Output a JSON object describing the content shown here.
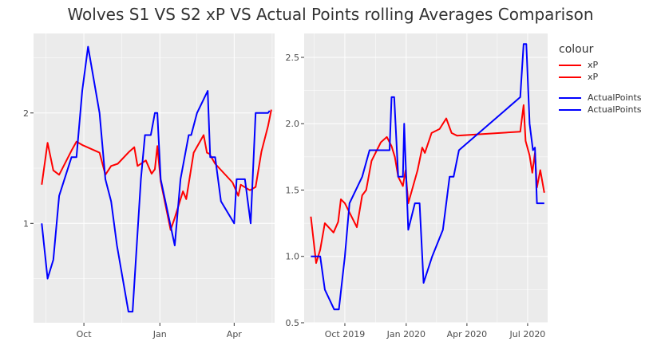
{
  "title": "Wolves S1 VS S2 xP VS Actual Points rolling Averages Comparison",
  "legend": {
    "title": "colour",
    "items": [
      {
        "label": "xP",
        "color": "#ff0000"
      },
      {
        "label": "xP",
        "color": "#ff0000"
      },
      {
        "label": "ActualPoints",
        "color": "#0000ff"
      },
      {
        "label": "ActualPoints",
        "color": "#0000ff"
      }
    ]
  },
  "chart_data": [
    {
      "type": "line",
      "title": "",
      "xlabel": "",
      "ylabel": "",
      "x_unit": "date",
      "xlim": [
        "2018-08-01",
        "2019-05-20"
      ],
      "ylim": [
        0.1,
        2.72
      ],
      "grid": true,
      "x_ticks": [
        {
          "value": "2018-10-01",
          "label": "Oct"
        },
        {
          "value": "2019-01-01",
          "label": "Jan"
        },
        {
          "value": "2019-04-01",
          "label": "Apr"
        }
      ],
      "y_ticks": [
        1,
        2
      ],
      "series": [
        {
          "name": "xP",
          "color": "#ff0000",
          "points": [
            [
              "2018-08-11",
              1.35
            ],
            [
              "2018-08-18",
              1.73
            ],
            [
              "2018-08-25",
              1.48
            ],
            [
              "2018-09-01",
              1.44
            ],
            [
              "2018-09-16",
              1.66
            ],
            [
              "2018-09-22",
              1.74
            ],
            [
              "2018-09-29",
              1.71
            ],
            [
              "2018-10-20",
              1.64
            ],
            [
              "2018-10-27",
              1.44
            ],
            [
              "2018-11-03",
              1.52
            ],
            [
              "2018-11-11",
              1.54
            ],
            [
              "2018-11-25",
              1.65
            ],
            [
              "2018-12-01",
              1.69
            ],
            [
              "2018-12-05",
              1.52
            ],
            [
              "2018-12-15",
              1.57
            ],
            [
              "2018-12-22",
              1.45
            ],
            [
              "2018-12-26",
              1.49
            ],
            [
              "2018-12-29",
              1.7
            ],
            [
              "2019-01-02",
              1.38
            ],
            [
              "2019-01-14",
              0.94
            ],
            [
              "2019-01-19",
              1.05
            ],
            [
              "2019-01-29",
              1.29
            ],
            [
              "2019-02-02",
              1.22
            ],
            [
              "2019-02-11",
              1.64
            ],
            [
              "2019-02-23",
              1.8
            ],
            [
              "2019-02-27",
              1.64
            ],
            [
              "2019-03-02",
              1.63
            ],
            [
              "2019-03-09",
              1.54
            ],
            [
              "2019-03-30",
              1.37
            ],
            [
              "2019-04-06",
              1.25
            ],
            [
              "2019-04-09",
              1.35
            ],
            [
              "2019-04-20",
              1.3
            ],
            [
              "2019-04-27",
              1.33
            ],
            [
              "2019-05-04",
              1.65
            ],
            [
              "2019-05-12",
              1.88
            ],
            [
              "2019-05-16",
              2.03
            ]
          ]
        },
        {
          "name": "ActualPoints",
          "color": "#0000ff",
          "points": [
            [
              "2018-08-11",
              1.0
            ],
            [
              "2018-08-18",
              0.5
            ],
            [
              "2018-08-25",
              0.67
            ],
            [
              "2018-09-01",
              1.25
            ],
            [
              "2018-09-16",
              1.6
            ],
            [
              "2018-09-22",
              1.6
            ],
            [
              "2018-09-29",
              2.2
            ],
            [
              "2018-10-06",
              2.6
            ],
            [
              "2018-10-20",
              2.0
            ],
            [
              "2018-10-27",
              1.4
            ],
            [
              "2018-11-03",
              1.2
            ],
            [
              "2018-11-10",
              0.8
            ],
            [
              "2018-11-24",
              0.2
            ],
            [
              "2018-11-29",
              0.2
            ],
            [
              "2018-12-09",
              1.4
            ],
            [
              "2018-12-14",
              1.8
            ],
            [
              "2018-12-21",
              1.8
            ],
            [
              "2018-12-26",
              2.0
            ],
            [
              "2018-12-29",
              2.0
            ],
            [
              "2019-01-02",
              1.4
            ],
            [
              "2019-01-19",
              0.8
            ],
            [
              "2019-01-26",
              1.4
            ],
            [
              "2019-02-05",
              1.8
            ],
            [
              "2019-02-08",
              1.8
            ],
            [
              "2019-02-15",
              2.0
            ],
            [
              "2019-02-28",
              2.2
            ],
            [
              "2019-03-03",
              1.6
            ],
            [
              "2019-03-09",
              1.6
            ],
            [
              "2019-03-16",
              1.2
            ],
            [
              "2019-04-01",
              1.0
            ],
            [
              "2019-04-04",
              1.4
            ],
            [
              "2019-04-14",
              1.4
            ],
            [
              "2019-04-21",
              1.0
            ],
            [
              "2019-04-27",
              2.0
            ],
            [
              "2019-05-12",
              2.0
            ],
            [
              "2019-05-14",
              2.02
            ]
          ]
        }
      ]
    },
    {
      "type": "line",
      "title": "",
      "xlabel": "",
      "ylabel": "",
      "x_unit": "date",
      "xlim": [
        "2019-08-01",
        "2020-07-31"
      ],
      "ylim": [
        0.5,
        2.68
      ],
      "grid": true,
      "x_ticks": [
        {
          "value": "2019-10-01",
          "label": "Oct 2019"
        },
        {
          "value": "2020-01-01",
          "label": "Jan 2020"
        },
        {
          "value": "2020-04-01",
          "label": "Apr 2020"
        },
        {
          "value": "2020-07-01",
          "label": "Jul 2020"
        }
      ],
      "y_ticks": [
        0.5,
        1.0,
        1.5,
        2.0,
        2.5
      ],
      "series": [
        {
          "name": "xP",
          "color": "#ff0000",
          "points": [
            [
              "2019-08-11",
              1.3
            ],
            [
              "2019-08-19",
              0.95
            ],
            [
              "2019-08-25",
              1.05
            ],
            [
              "2019-09-01",
              1.25
            ],
            [
              "2019-09-14",
              1.18
            ],
            [
              "2019-09-21",
              1.26
            ],
            [
              "2019-09-25",
              1.43
            ],
            [
              "2019-10-01",
              1.4
            ],
            [
              "2019-10-19",
              1.22
            ],
            [
              "2019-10-27",
              1.46
            ],
            [
              "2019-11-02",
              1.5
            ],
            [
              "2019-11-10",
              1.72
            ],
            [
              "2019-11-24",
              1.86
            ],
            [
              "2019-12-03",
              1.9
            ],
            [
              "2019-12-10",
              1.83
            ],
            [
              "2019-12-15",
              1.75
            ],
            [
              "2019-12-20",
              1.6
            ],
            [
              "2019-12-27",
              1.53
            ],
            [
              "2019-12-31",
              1.65
            ],
            [
              "2020-01-04",
              1.4
            ],
            [
              "2020-01-18",
              1.65
            ],
            [
              "2020-01-25",
              1.82
            ],
            [
              "2020-01-29",
              1.78
            ],
            [
              "2020-02-08",
              1.93
            ],
            [
              "2020-02-20",
              1.96
            ],
            [
              "2020-03-01",
              2.04
            ],
            [
              "2020-03-09",
              1.93
            ],
            [
              "2020-03-17",
              1.91
            ],
            [
              "2020-06-20",
              1.94
            ],
            [
              "2020-06-25",
              2.14
            ],
            [
              "2020-06-28",
              1.87
            ],
            [
              "2020-07-04",
              1.76
            ],
            [
              "2020-07-08",
              1.63
            ],
            [
              "2020-07-12",
              1.78
            ],
            [
              "2020-07-15",
              1.52
            ],
            [
              "2020-07-20",
              1.65
            ],
            [
              "2020-07-26",
              1.48
            ]
          ]
        },
        {
          "name": "ActualPoints",
          "color": "#0000ff",
          "points": [
            [
              "2019-08-11",
              1.0
            ],
            [
              "2019-08-25",
              1.0
            ],
            [
              "2019-09-01",
              0.75
            ],
            [
              "2019-09-15",
              0.6
            ],
            [
              "2019-09-22",
              0.6
            ],
            [
              "2019-10-01",
              1.0
            ],
            [
              "2019-10-08",
              1.4
            ],
            [
              "2019-10-27",
              1.6
            ],
            [
              "2019-11-07",
              1.8
            ],
            [
              "2019-12-07",
              1.8
            ],
            [
              "2019-12-10",
              2.2
            ],
            [
              "2019-12-14",
              2.2
            ],
            [
              "2019-12-20",
              1.6
            ],
            [
              "2019-12-27",
              1.6
            ],
            [
              "2019-12-29",
              2.0
            ],
            [
              "2020-01-01",
              1.6
            ],
            [
              "2020-01-04",
              1.2
            ],
            [
              "2020-01-14",
              1.4
            ],
            [
              "2020-01-21",
              1.4
            ],
            [
              "2020-01-27",
              0.8
            ],
            [
              "2020-02-09",
              1.0
            ],
            [
              "2020-02-25",
              1.2
            ],
            [
              "2020-03-06",
              1.6
            ],
            [
              "2020-03-12",
              1.6
            ],
            [
              "2020-03-20",
              1.8
            ],
            [
              "2020-06-20",
              2.2
            ],
            [
              "2020-06-25",
              2.6
            ],
            [
              "2020-06-29",
              2.6
            ],
            [
              "2020-07-04",
              2.0
            ],
            [
              "2020-07-09",
              1.8
            ],
            [
              "2020-07-12",
              1.82
            ],
            [
              "2020-07-15",
              1.4
            ],
            [
              "2020-07-26",
              1.4
            ]
          ]
        }
      ]
    }
  ]
}
